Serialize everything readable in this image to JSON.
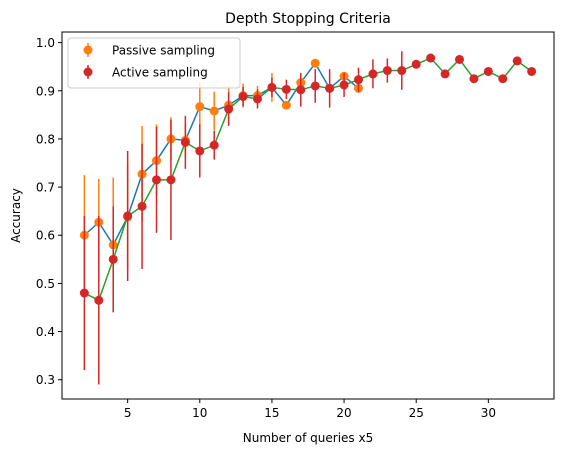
{
  "chart_data": {
    "type": "line",
    "title": "Depth Stopping Criteria",
    "xlabel": "Number of queries x5",
    "ylabel": "Accuracy",
    "xlim": [
      0.45,
      34.55
    ],
    "ylim": [
      0.26,
      1.022
    ],
    "xticks": [
      5,
      10,
      15,
      20,
      25,
      30
    ],
    "yticks": [
      0.3,
      0.4,
      0.5,
      0.6,
      0.7,
      0.8,
      0.9,
      1.0
    ],
    "ytick_labels": [
      "0.3",
      "0.4",
      "0.5",
      "0.6",
      "0.7",
      "0.8",
      "0.9",
      "1.0"
    ],
    "grid": false,
    "legend_position": "upper-left",
    "series": [
      {
        "name": "Passive sampling",
        "line_color": "#1f77b4",
        "marker_color": "#ff7f0e",
        "errorbar_color": "#ff7f0e",
        "x": [
          2,
          3,
          4,
          5,
          6,
          7,
          8,
          9,
          10,
          11,
          12,
          13,
          14,
          15,
          16,
          17,
          18,
          19,
          20,
          21
        ],
        "y": [
          0.6,
          0.627,
          0.58,
          0.638,
          0.727,
          0.755,
          0.8,
          0.797,
          0.867,
          0.858,
          0.87,
          0.89,
          0.89,
          0.907,
          0.87,
          0.917,
          0.957,
          0.905,
          0.93,
          0.905
        ],
        "err": [
          0.125,
          0.09,
          0.14,
          0.11,
          0.1,
          0.075,
          0.045,
          0.035,
          0.05,
          0.04,
          0.04,
          0.025,
          0.02,
          0.03,
          0.0,
          0.0,
          0.0,
          0.0,
          0.0,
          0.0
        ]
      },
      {
        "name": "Active sampling",
        "line_color": "#2ca02c",
        "marker_color": "#d62728",
        "errorbar_color": "#d62728",
        "x": [
          2,
          3,
          4,
          5,
          6,
          7,
          8,
          9,
          10,
          11,
          12,
          13,
          14,
          15,
          16,
          17,
          18,
          19,
          20,
          21,
          22,
          23,
          24,
          25,
          26,
          27,
          28,
          29,
          30,
          31,
          32,
          33
        ],
        "y": [
          0.48,
          0.465,
          0.55,
          0.64,
          0.66,
          0.715,
          0.715,
          0.793,
          0.775,
          0.787,
          0.862,
          0.888,
          0.883,
          0.907,
          0.903,
          0.902,
          0.91,
          0.905,
          0.912,
          0.923,
          0.935,
          0.942,
          0.942,
          0.955,
          0.968,
          0.935,
          0.965,
          0.925,
          0.94,
          0.925,
          0.962,
          0.94
        ],
        "err": [
          0.16,
          0.175,
          0.11,
          0.135,
          0.13,
          0.11,
          0.125,
          0.055,
          0.055,
          0.03,
          0.035,
          0.02,
          0.02,
          0.02,
          0.02,
          0.035,
          0.035,
          0.04,
          0.025,
          0.025,
          0.03,
          0.025,
          0.04,
          0.0,
          0.0,
          0.0,
          0.0,
          0.0,
          0.0,
          0.0,
          0.0,
          0.0
        ]
      }
    ]
  }
}
